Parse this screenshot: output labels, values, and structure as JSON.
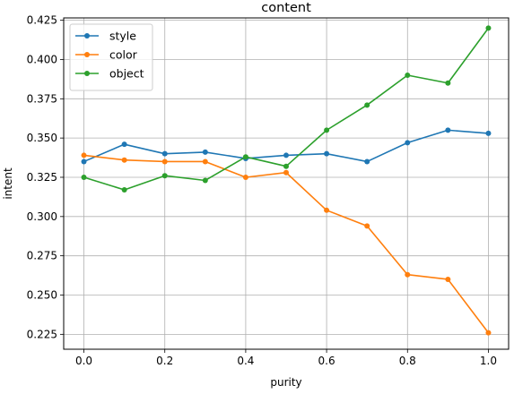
{
  "chart_data": {
    "type": "line",
    "title": "content",
    "xlabel": "purity",
    "ylabel": "intent",
    "xlim": [
      -0.05,
      1.05
    ],
    "ylim": [
      0.2155,
      0.4265
    ],
    "xticks": [
      0.0,
      0.2,
      0.4,
      0.6,
      0.8,
      1.0
    ],
    "xtick_labels": [
      "0.0",
      "0.2",
      "0.4",
      "0.6",
      "0.8",
      "1.0"
    ],
    "yticks": [
      0.225,
      0.25,
      0.275,
      0.3,
      0.325,
      0.35,
      0.375,
      0.4,
      0.425
    ],
    "ytick_labels": [
      "0.225",
      "0.250",
      "0.275",
      "0.300",
      "0.325",
      "0.350",
      "0.375",
      "0.400",
      "0.425"
    ],
    "grid": true,
    "legend_position": "top-left",
    "x": [
      0.0,
      0.1,
      0.2,
      0.3,
      0.4,
      0.5,
      0.6,
      0.7,
      0.8,
      0.9,
      1.0
    ],
    "series": [
      {
        "name": "style",
        "color": "#1f77b4",
        "values": [
          0.335,
          0.346,
          0.34,
          0.341,
          0.337,
          0.339,
          0.34,
          0.335,
          0.347,
          0.355,
          0.353
        ]
      },
      {
        "name": "color",
        "color": "#ff7f0e",
        "values": [
          0.339,
          0.336,
          0.335,
          0.335,
          0.325,
          0.328,
          0.304,
          0.294,
          0.263,
          0.26,
          0.226
        ]
      },
      {
        "name": "object",
        "color": "#2ca02c",
        "values": [
          0.325,
          0.317,
          0.326,
          0.323,
          0.338,
          0.332,
          0.355,
          0.371,
          0.39,
          0.385,
          0.42
        ]
      }
    ]
  }
}
